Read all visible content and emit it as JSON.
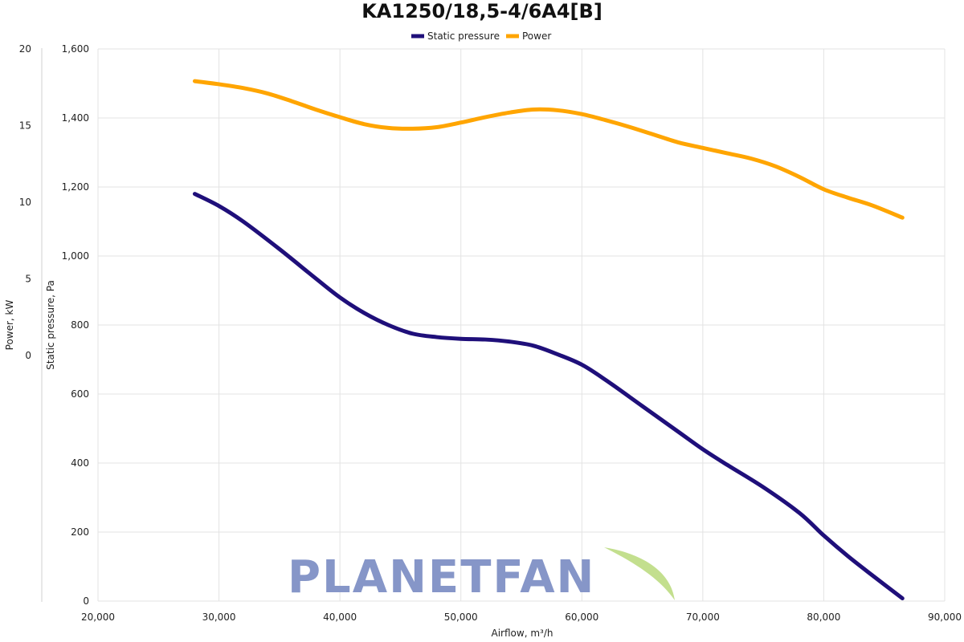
{
  "chart_data": {
    "type": "line",
    "title": "KA1250/18,5-4/6A4[B]",
    "xlabel": "Airflow, m³/h",
    "ylabel": "Static pressure, Pa",
    "y2label": "Power, kW",
    "xlim": [
      20000,
      90000
    ],
    "ylim": [
      0,
      1600
    ],
    "y2lim": [
      -16,
      20
    ],
    "grid": true,
    "legend_position": "top-center",
    "x_ticks": [
      "20,000",
      "30,000",
      "40,000",
      "50,000",
      "60,000",
      "70,000",
      "80,000",
      "90,000"
    ],
    "y_ticks": [
      "0",
      "200",
      "400",
      "600",
      "800",
      "1,000",
      "1,200",
      "1,400",
      "1,600"
    ],
    "y2_ticks": [
      "0",
      "5",
      "10",
      "15",
      "20"
    ],
    "series": [
      {
        "name": "Static pressure",
        "axis": "left",
        "color": "#1f0f7a",
        "x": [
          28000,
          30000,
          32000,
          35000,
          38000,
          40000,
          42000,
          44000,
          46000,
          48000,
          50000,
          52000,
          54000,
          56000,
          58000,
          60000,
          62000,
          65000,
          68000,
          70000,
          72000,
          75000,
          78000,
          80000,
          82000,
          84000,
          86500
        ],
        "values": [
          1180,
          1145,
          1100,
          1020,
          935,
          880,
          835,
          800,
          775,
          765,
          760,
          758,
          752,
          740,
          715,
          685,
          640,
          565,
          490,
          440,
          395,
          330,
          255,
          190,
          130,
          75,
          8
        ]
      },
      {
        "name": "Power",
        "axis": "right",
        "color": "#ffa500",
        "x": [
          28000,
          30000,
          32000,
          34000,
          36000,
          38000,
          40000,
          42000,
          44000,
          46000,
          48000,
          50000,
          52000,
          54000,
          56000,
          58000,
          60000,
          62000,
          64000,
          66000,
          68000,
          70000,
          72000,
          74000,
          76000,
          78000,
          80000,
          82000,
          84000,
          86500
        ],
        "values": [
          17.9,
          17.7,
          17.45,
          17.1,
          16.6,
          16.05,
          15.55,
          15.1,
          14.85,
          14.8,
          14.9,
          15.2,
          15.55,
          15.85,
          16.05,
          16.0,
          15.75,
          15.35,
          14.9,
          14.4,
          13.9,
          13.55,
          13.2,
          12.85,
          12.35,
          11.65,
          10.85,
          10.3,
          9.8,
          9.0
        ]
      }
    ]
  },
  "watermark": {
    "text": "PLANETFAN",
    "color": "#8696c8",
    "leaf_color": "#b9d97a"
  }
}
